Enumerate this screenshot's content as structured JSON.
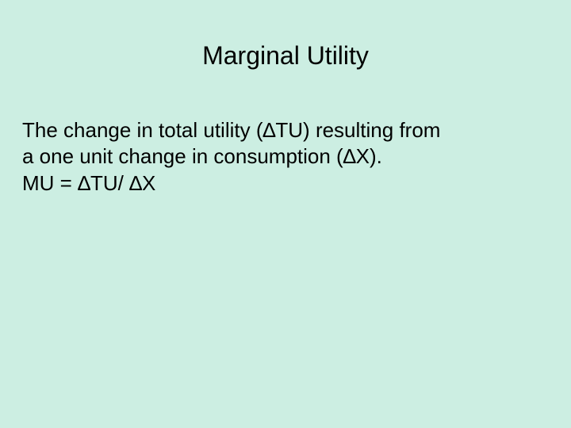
{
  "background_color": "#cceee2",
  "text_color": "#000000",
  "font_family": "Arial, Helvetica, sans-serif",
  "title": {
    "text": "Marginal Utility",
    "fontsize": 32
  },
  "body": {
    "fontsize": 26,
    "lines": [
      "The change in total utility (∆TU) resulting from",
      "a one unit change in consumption (∆X).",
      "MU = ∆TU/ ∆X"
    ]
  }
}
